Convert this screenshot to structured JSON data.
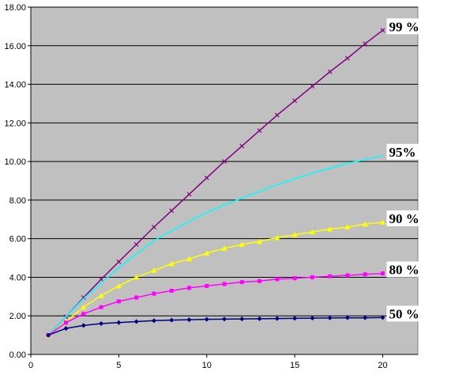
{
  "chart_data": {
    "type": "line",
    "title": "",
    "xlabel": "",
    "ylabel": "",
    "xlim": [
      0,
      22
    ],
    "ylim": [
      0,
      18
    ],
    "x_ticks": [
      "0",
      "5",
      "10",
      "15",
      "20"
    ],
    "y_ticks": [
      "0.00",
      "2.00",
      "4.00",
      "6.00",
      "8.00",
      "10.00",
      "12.00",
      "14.00",
      "16.00",
      "18.00"
    ],
    "grid": "horizontal",
    "plot_background": "#c0c0c0",
    "x": [
      1,
      2,
      3,
      4,
      5,
      6,
      7,
      8,
      9,
      10,
      11,
      12,
      13,
      14,
      15,
      16,
      17,
      18,
      19,
      20
    ],
    "series": [
      {
        "name": "99 %",
        "color": "#800080",
        "marker": "x",
        "values": [
          1.0,
          1.95,
          2.95,
          3.9,
          4.8,
          5.7,
          6.6,
          7.45,
          8.3,
          9.15,
          10.0,
          10.8,
          11.6,
          12.4,
          13.15,
          13.9,
          14.65,
          15.35,
          16.1,
          16.8
        ]
      },
      {
        "name": "95%",
        "color": "#00ffff",
        "marker": "none",
        "values": [
          1.0,
          1.95,
          2.9,
          3.7,
          4.5,
          5.2,
          5.9,
          6.4,
          6.9,
          7.35,
          7.75,
          8.1,
          8.45,
          8.8,
          9.1,
          9.4,
          9.65,
          9.9,
          10.1,
          10.3
        ]
      },
      {
        "name": "90 %",
        "color": "#ffff00",
        "marker": "triangle",
        "values": [
          1.0,
          1.7,
          2.45,
          3.05,
          3.55,
          4.0,
          4.35,
          4.7,
          4.95,
          5.25,
          5.5,
          5.7,
          5.85,
          6.05,
          6.2,
          6.35,
          6.5,
          6.6,
          6.75,
          6.85
        ]
      },
      {
        "name": "80 %",
        "color": "#ff00ff",
        "marker": "square",
        "values": [
          1.0,
          1.65,
          2.1,
          2.45,
          2.75,
          2.95,
          3.15,
          3.3,
          3.45,
          3.55,
          3.65,
          3.75,
          3.8,
          3.9,
          3.95,
          4.0,
          4.05,
          4.1,
          4.15,
          4.2
        ]
      },
      {
        "name": "50 %",
        "color": "#000080",
        "marker": "diamond",
        "values": [
          1.0,
          1.35,
          1.5,
          1.6,
          1.65,
          1.7,
          1.75,
          1.78,
          1.8,
          1.82,
          1.83,
          1.84,
          1.85,
          1.86,
          1.87,
          1.88,
          1.89,
          1.9,
          1.9,
          1.91
        ]
      }
    ]
  }
}
